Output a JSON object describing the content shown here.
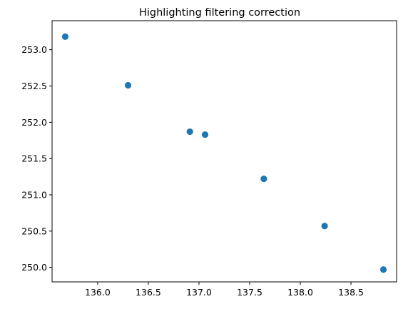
{
  "chart_data": {
    "type": "scatter",
    "title": "Highlighting filtering correction",
    "xlabel": "",
    "ylabel": "",
    "xlim": [
      135.55,
      138.95
    ],
    "ylim": [
      249.8,
      253.4
    ],
    "x_ticks": [
      136.0,
      136.5,
      137.0,
      137.5,
      138.0,
      138.5
    ],
    "x_tick_labels": [
      "136.0",
      "136.5",
      "137.0",
      "137.5",
      "138.0",
      "138.5"
    ],
    "y_ticks": [
      250.0,
      250.5,
      251.0,
      251.5,
      252.0,
      252.5,
      253.0
    ],
    "y_tick_labels": [
      "250.0",
      "250.5",
      "251.0",
      "251.5",
      "252.0",
      "252.5",
      "253.0"
    ],
    "grid": false,
    "marker_color": "#1f77b4",
    "points": [
      {
        "x": 135.68,
        "y": 253.18
      },
      {
        "x": 136.3,
        "y": 252.51
      },
      {
        "x": 136.91,
        "y": 251.87
      },
      {
        "x": 137.06,
        "y": 251.83
      },
      {
        "x": 137.64,
        "y": 251.22
      },
      {
        "x": 138.24,
        "y": 250.57
      },
      {
        "x": 138.82,
        "y": 249.97
      }
    ]
  }
}
